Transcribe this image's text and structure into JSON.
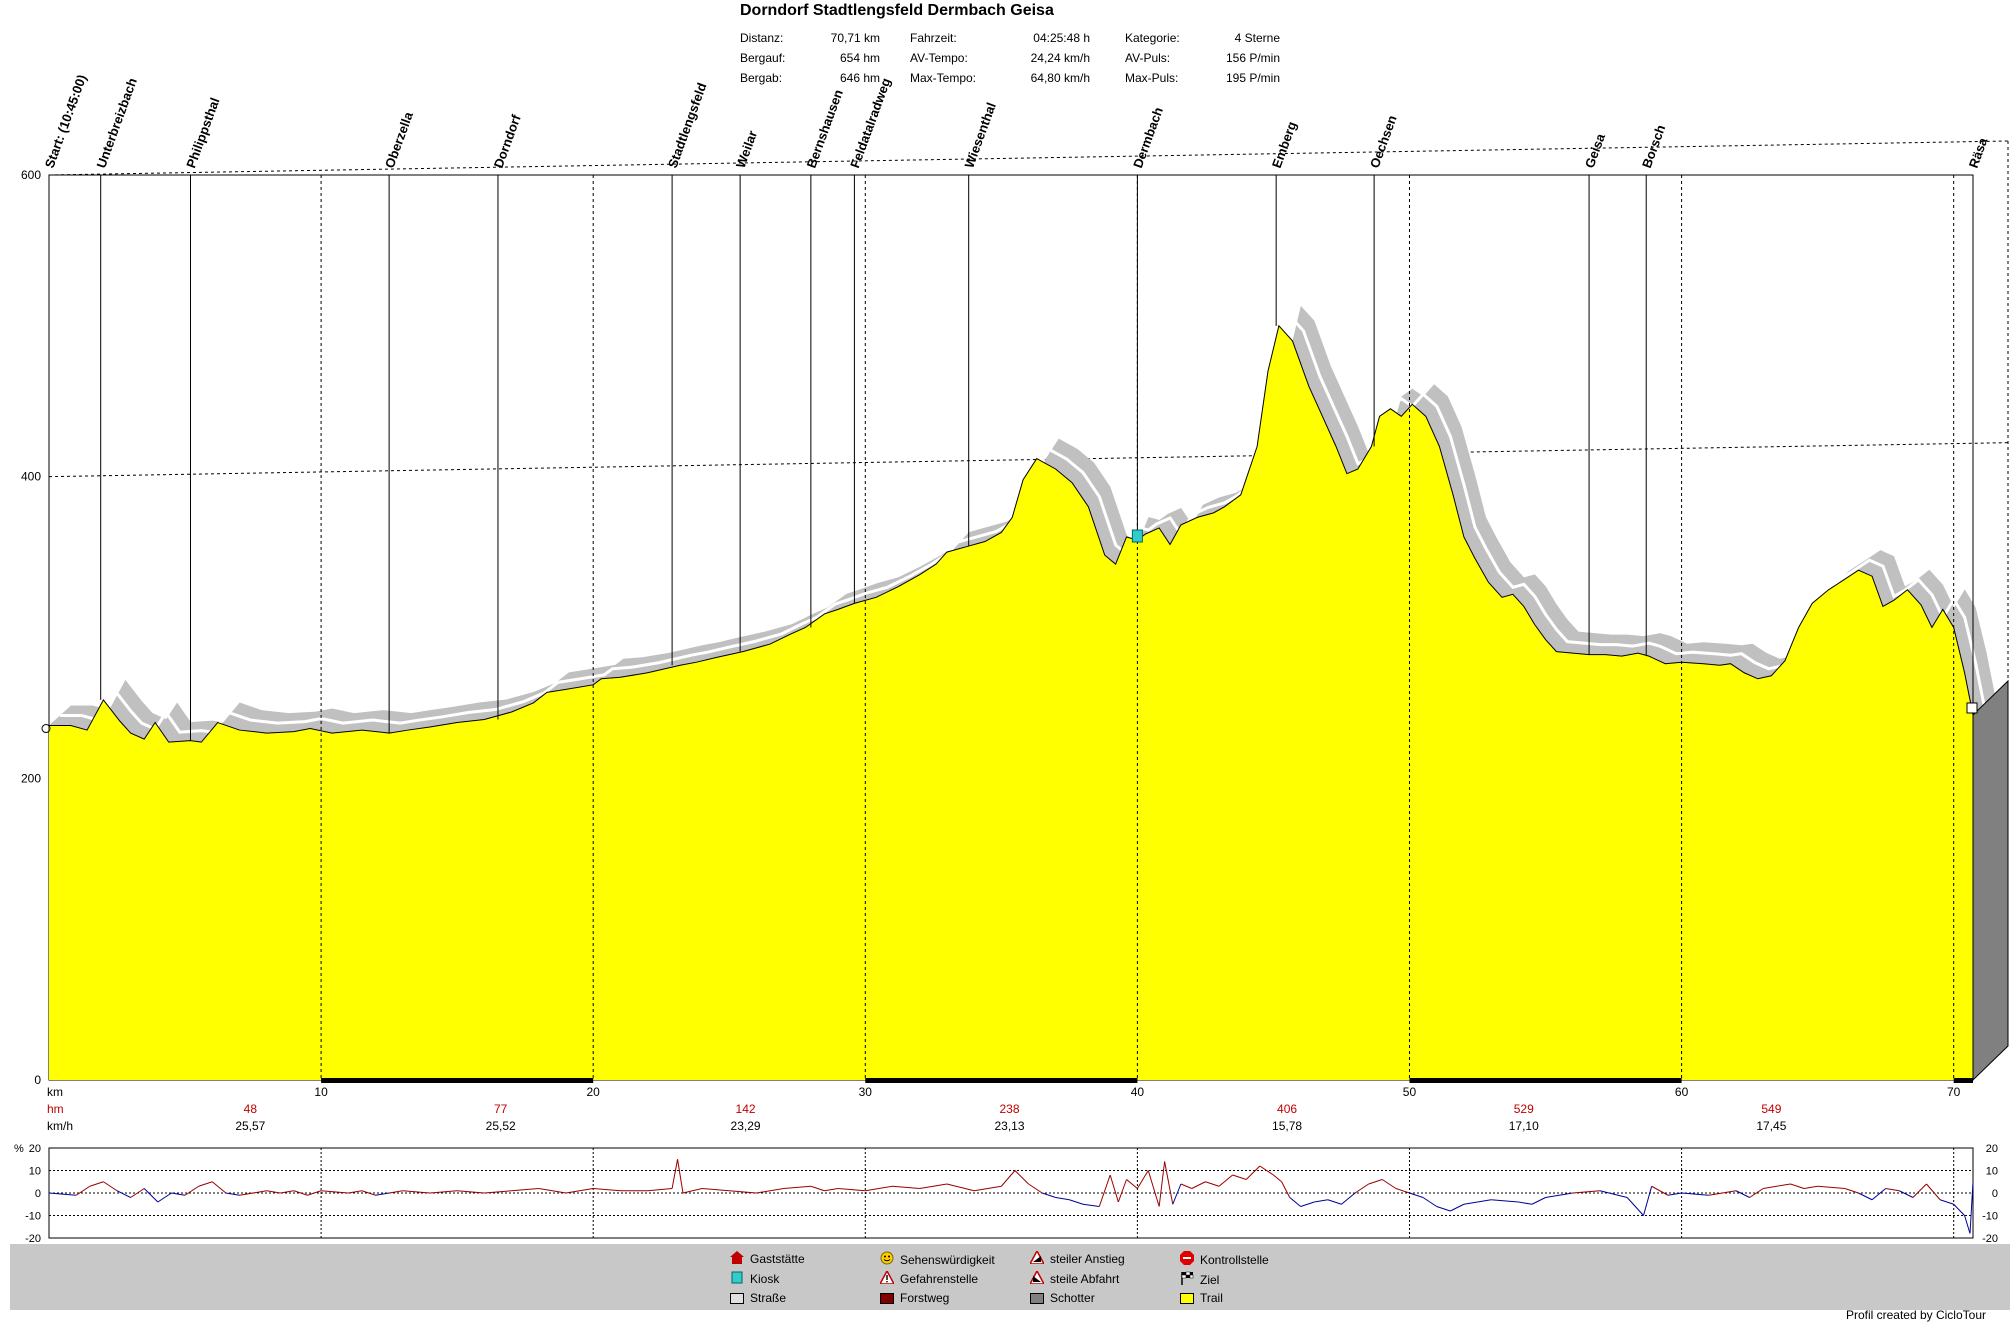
{
  "header": {
    "title": "Dorndorf Stadtlengsfeld Dermbach Geisa",
    "stats": [
      {
        "label": "Distanz:",
        "value": "70,71 km"
      },
      {
        "label": "Bergauf:",
        "value": "654 hm"
      },
      {
        "label": "Bergab:",
        "value": "646 hm"
      },
      {
        "label": "Fahrzeit:",
        "value": "04:25:48 h"
      },
      {
        "label": "AV-Tempo:",
        "value": "24,24 km/h"
      },
      {
        "label": "Max-Tempo:",
        "value": "64,80 km/h"
      },
      {
        "label": "Kategorie:",
        "value": "4 Sterne"
      },
      {
        "label": "AV-Puls:",
        "value": "156 P/min"
      },
      {
        "label": "Max-Puls:",
        "value": "195 P/min"
      }
    ]
  },
  "chart_data": {
    "type": "area",
    "title": "Dorndorf Stadtlengsfeld Dermbach Geisa",
    "xlabel": "km",
    "xlim": [
      0,
      70.71
    ],
    "ylim": [
      0,
      600
    ],
    "x_ticks": [
      10,
      20,
      30,
      40,
      50,
      60,
      70
    ],
    "y_ticks": [
      0,
      200,
      400,
      600
    ],
    "grid": true,
    "fill_color": "#ffff00",
    "shadow_color": "#c0c0c0",
    "elevation": [
      [
        0,
        235
      ],
      [
        0.8,
        235
      ],
      [
        1.4,
        232
      ],
      [
        2.0,
        252
      ],
      [
        2.6,
        238
      ],
      [
        3.0,
        230
      ],
      [
        3.5,
        226
      ],
      [
        3.9,
        237
      ],
      [
        4.4,
        224
      ],
      [
        5.2,
        225
      ],
      [
        5.6,
        224
      ],
      [
        6.2,
        237
      ],
      [
        7.0,
        232
      ],
      [
        8.0,
        230
      ],
      [
        9.0,
        231
      ],
      [
        9.6,
        233
      ],
      [
        10.4,
        230
      ],
      [
        11.5,
        232
      ],
      [
        12.5,
        230
      ],
      [
        13.2,
        232
      ],
      [
        14.0,
        234
      ],
      [
        15.0,
        237
      ],
      [
        16.0,
        239
      ],
      [
        17.0,
        244
      ],
      [
        17.8,
        250
      ],
      [
        18.3,
        257
      ],
      [
        19.0,
        259
      ],
      [
        20.0,
        262
      ],
      [
        20.3,
        266
      ],
      [
        21.0,
        267
      ],
      [
        22.0,
        270
      ],
      [
        23.2,
        275
      ],
      [
        23.8,
        277
      ],
      [
        24.5,
        280
      ],
      [
        25.5,
        284
      ],
      [
        26.5,
        289
      ],
      [
        27.3,
        296
      ],
      [
        27.8,
        300
      ],
      [
        28.5,
        309
      ],
      [
        29.0,
        312
      ],
      [
        29.6,
        316
      ],
      [
        30.4,
        320
      ],
      [
        31.2,
        327
      ],
      [
        32.0,
        335
      ],
      [
        32.6,
        342
      ],
      [
        33.0,
        350
      ],
      [
        33.8,
        354
      ],
      [
        34.4,
        357
      ],
      [
        35.0,
        363
      ],
      [
        35.4,
        373
      ],
      [
        35.8,
        398
      ],
      [
        36.3,
        412
      ],
      [
        37.0,
        405
      ],
      [
        37.6,
        396
      ],
      [
        38.2,
        380
      ],
      [
        38.8,
        348
      ],
      [
        39.2,
        342
      ],
      [
        39.6,
        360
      ],
      [
        40.0,
        358
      ],
      [
        40.3,
        362
      ],
      [
        40.8,
        366
      ],
      [
        41.2,
        355
      ],
      [
        41.6,
        368
      ],
      [
        42.2,
        373
      ],
      [
        42.8,
        376
      ],
      [
        43.2,
        380
      ],
      [
        43.8,
        388
      ],
      [
        44.4,
        420
      ],
      [
        44.8,
        470
      ],
      [
        45.2,
        500
      ],
      [
        45.7,
        490
      ],
      [
        46.3,
        460
      ],
      [
        46.8,
        440
      ],
      [
        47.3,
        420
      ],
      [
        47.7,
        402
      ],
      [
        48.1,
        405
      ],
      [
        48.6,
        420
      ],
      [
        48.9,
        440
      ],
      [
        49.3,
        445
      ],
      [
        49.7,
        440
      ],
      [
        50.1,
        448
      ],
      [
        50.6,
        440
      ],
      [
        51.1,
        420
      ],
      [
        51.6,
        388
      ],
      [
        52.0,
        360
      ],
      [
        52.4,
        346
      ],
      [
        52.9,
        330
      ],
      [
        53.4,
        320
      ],
      [
        53.8,
        322
      ],
      [
        54.2,
        314
      ],
      [
        54.6,
        302
      ],
      [
        55.0,
        292
      ],
      [
        55.4,
        284
      ],
      [
        56.0,
        283
      ],
      [
        56.6,
        282
      ],
      [
        57.2,
        282
      ],
      [
        57.8,
        281
      ],
      [
        58.4,
        283
      ],
      [
        58.8,
        281
      ],
      [
        59.4,
        276
      ],
      [
        60.0,
        277
      ],
      [
        60.8,
        276
      ],
      [
        61.4,
        275
      ],
      [
        61.8,
        276
      ],
      [
        62.3,
        270
      ],
      [
        62.8,
        266
      ],
      [
        63.3,
        268
      ],
      [
        63.8,
        278
      ],
      [
        64.3,
        300
      ],
      [
        64.8,
        316
      ],
      [
        65.4,
        325
      ],
      [
        66.0,
        332
      ],
      [
        66.5,
        338
      ],
      [
        67.0,
        334
      ],
      [
        67.4,
        314
      ],
      [
        67.8,
        318
      ],
      [
        68.3,
        325
      ],
      [
        68.8,
        315
      ],
      [
        69.2,
        300
      ],
      [
        69.6,
        312
      ],
      [
        70.0,
        300
      ],
      [
        70.4,
        270
      ],
      [
        70.71,
        242
      ]
    ],
    "waypoints": [
      {
        "name": "Start: (10:45:00)",
        "km": 0
      },
      {
        "name": "Unterbreizbach",
        "km": 1.9
      },
      {
        "name": "Philippsthal",
        "km": 5.2
      },
      {
        "name": "Oberzella",
        "km": 12.5
      },
      {
        "name": "Dorndorf",
        "km": 16.5
      },
      {
        "name": "Stadtlengsfeld",
        "km": 22.9
      },
      {
        "name": "Weilar",
        "km": 25.4
      },
      {
        "name": "Bernshausen",
        "km": 28.0
      },
      {
        "name": "Feldatalradweg",
        "km": 29.6
      },
      {
        "name": "Wiesenthal",
        "km": 33.8
      },
      {
        "name": "Dermbach",
        "km": 40.0
      },
      {
        "name": "Emberg",
        "km": 45.1
      },
      {
        "name": "Oechsen",
        "km": 48.7
      },
      {
        "name": "Geisa",
        "km": 56.6
      },
      {
        "name": "Borsch",
        "km": 58.7
      },
      {
        "name": "Räsa",
        "km": 70.71
      }
    ],
    "segments_axis": {
      "label": "km",
      "hm_label": "hm",
      "kmh_label": "km/h",
      "hm_color": "#c00000"
    },
    "segments": [
      {
        "center_km": 7.4,
        "hm": "48",
        "kmh": "25,57"
      },
      {
        "center_km": 16.6,
        "hm": "77",
        "kmh": "25,52"
      },
      {
        "center_km": 25.6,
        "hm": "142",
        "kmh": "23,29"
      },
      {
        "center_km": 35.3,
        "hm": "238",
        "kmh": "23,13"
      },
      {
        "center_km": 45.5,
        "hm": "406",
        "kmh": "15,78"
      },
      {
        "center_km": 54.2,
        "hm": "529",
        "kmh": "17,10"
      },
      {
        "center_km": 63.3,
        "hm": "549",
        "kmh": "17,45"
      }
    ],
    "gradient_chart": {
      "ylabel": "%",
      "ylim": [
        -20,
        20
      ],
      "y_ticks": [
        20,
        10,
        0,
        -10,
        -20
      ],
      "series": [
        [
          0,
          0
        ],
        [
          1,
          -1
        ],
        [
          1.5,
          3
        ],
        [
          2,
          5
        ],
        [
          2.5,
          1
        ],
        [
          3,
          -2
        ],
        [
          3.5,
          2
        ],
        [
          4,
          -4
        ],
        [
          4.5,
          0
        ],
        [
          5,
          -1
        ],
        [
          5.5,
          3
        ],
        [
          6,
          5
        ],
        [
          6.5,
          0
        ],
        [
          7,
          -1
        ],
        [
          8,
          1
        ],
        [
          8.5,
          0
        ],
        [
          9,
          1
        ],
        [
          9.5,
          -1
        ],
        [
          10,
          1
        ],
        [
          11,
          0
        ],
        [
          11.5,
          1
        ],
        [
          12,
          -1
        ],
        [
          12.5,
          0
        ],
        [
          13,
          1
        ],
        [
          14,
          0
        ],
        [
          15,
          1
        ],
        [
          16,
          0
        ],
        [
          17,
          1
        ],
        [
          18,
          2
        ],
        [
          18.5,
          1
        ],
        [
          19,
          0
        ],
        [
          20,
          2
        ],
        [
          21,
          1
        ],
        [
          22,
          1
        ],
        [
          22.9,
          2
        ],
        [
          23.1,
          15
        ],
        [
          23.3,
          0
        ],
        [
          24,
          2
        ],
        [
          25,
          1
        ],
        [
          26,
          0
        ],
        [
          27,
          2
        ],
        [
          28,
          3
        ],
        [
          28.5,
          1
        ],
        [
          29,
          2
        ],
        [
          30,
          1
        ],
        [
          31,
          3
        ],
        [
          32,
          2
        ],
        [
          33,
          4
        ],
        [
          34,
          1
        ],
        [
          35,
          3
        ],
        [
          35.5,
          10
        ],
        [
          36,
          4
        ],
        [
          36.5,
          0
        ],
        [
          37,
          -2
        ],
        [
          37.5,
          -3
        ],
        [
          38,
          -5
        ],
        [
          38.6,
          -6
        ],
        [
          39.0,
          8
        ],
        [
          39.3,
          -4
        ],
        [
          39.6,
          6
        ],
        [
          40,
          2
        ],
        [
          40.4,
          10
        ],
        [
          40.8,
          -6
        ],
        [
          41.0,
          14
        ],
        [
          41.3,
          -5
        ],
        [
          41.6,
          4
        ],
        [
          42,
          2
        ],
        [
          42.5,
          5
        ],
        [
          43,
          3
        ],
        [
          43.5,
          8
        ],
        [
          44,
          6
        ],
        [
          44.5,
          12
        ],
        [
          45,
          8
        ],
        [
          45.3,
          5
        ],
        [
          45.6,
          -2
        ],
        [
          46,
          -6
        ],
        [
          46.5,
          -4
        ],
        [
          47,
          -3
        ],
        [
          47.5,
          -5
        ],
        [
          48,
          0
        ],
        [
          48.5,
          4
        ],
        [
          49,
          6
        ],
        [
          49.5,
          2
        ],
        [
          50,
          0
        ],
        [
          50.5,
          -2
        ],
        [
          51,
          -6
        ],
        [
          51.5,
          -8
        ],
        [
          52,
          -5
        ],
        [
          52.5,
          -4
        ],
        [
          53,
          -3
        ],
        [
          54,
          -4
        ],
        [
          54.5,
          -5
        ],
        [
          55,
          -2
        ],
        [
          56,
          0
        ],
        [
          57,
          1
        ],
        [
          58,
          -2
        ],
        [
          58.6,
          -10
        ],
        [
          58.9,
          3
        ],
        [
          59.5,
          -1
        ],
        [
          60,
          0
        ],
        [
          61,
          -1
        ],
        [
          62,
          1
        ],
        [
          62.5,
          -2
        ],
        [
          63,
          2
        ],
        [
          64,
          4
        ],
        [
          64.5,
          2
        ],
        [
          65,
          3
        ],
        [
          66,
          2
        ],
        [
          66.5,
          0
        ],
        [
          67,
          -3
        ],
        [
          67.5,
          2
        ],
        [
          68,
          1
        ],
        [
          68.5,
          -2
        ],
        [
          69,
          4
        ],
        [
          69.5,
          -3
        ],
        [
          70,
          -5
        ],
        [
          70.4,
          -10
        ],
        [
          70.6,
          -18
        ],
        [
          70.71,
          5
        ]
      ]
    }
  },
  "legend": {
    "items": [
      {
        "label": "Gaststätte",
        "icon": "house-icon"
      },
      {
        "label": "Kiosk",
        "icon": "kiosk-icon"
      },
      {
        "label": "Straße",
        "icon": "road-swatch",
        "color": "#e0e0e0"
      },
      {
        "label": "Sehenswürdigkeit",
        "icon": "smiley-icon"
      },
      {
        "label": "Gefahrenstelle",
        "icon": "warning-icon"
      },
      {
        "label": "Forstweg",
        "icon": "forest-path-swatch",
        "color": "#800000"
      },
      {
        "label": "steiler Anstieg",
        "icon": "steep-climb-icon"
      },
      {
        "label": "steile Abfahrt",
        "icon": "steep-descent-icon"
      },
      {
        "label": "Schotter",
        "icon": "gravel-swatch",
        "color": "#808080"
      },
      {
        "label": "Kontrollstelle",
        "icon": "stop-icon"
      },
      {
        "label": "Ziel",
        "icon": "finish-flag-icon"
      },
      {
        "label": "Trail",
        "icon": "trail-swatch",
        "color": "#ffff00"
      }
    ]
  },
  "credit": "Profil created by CicloTour"
}
